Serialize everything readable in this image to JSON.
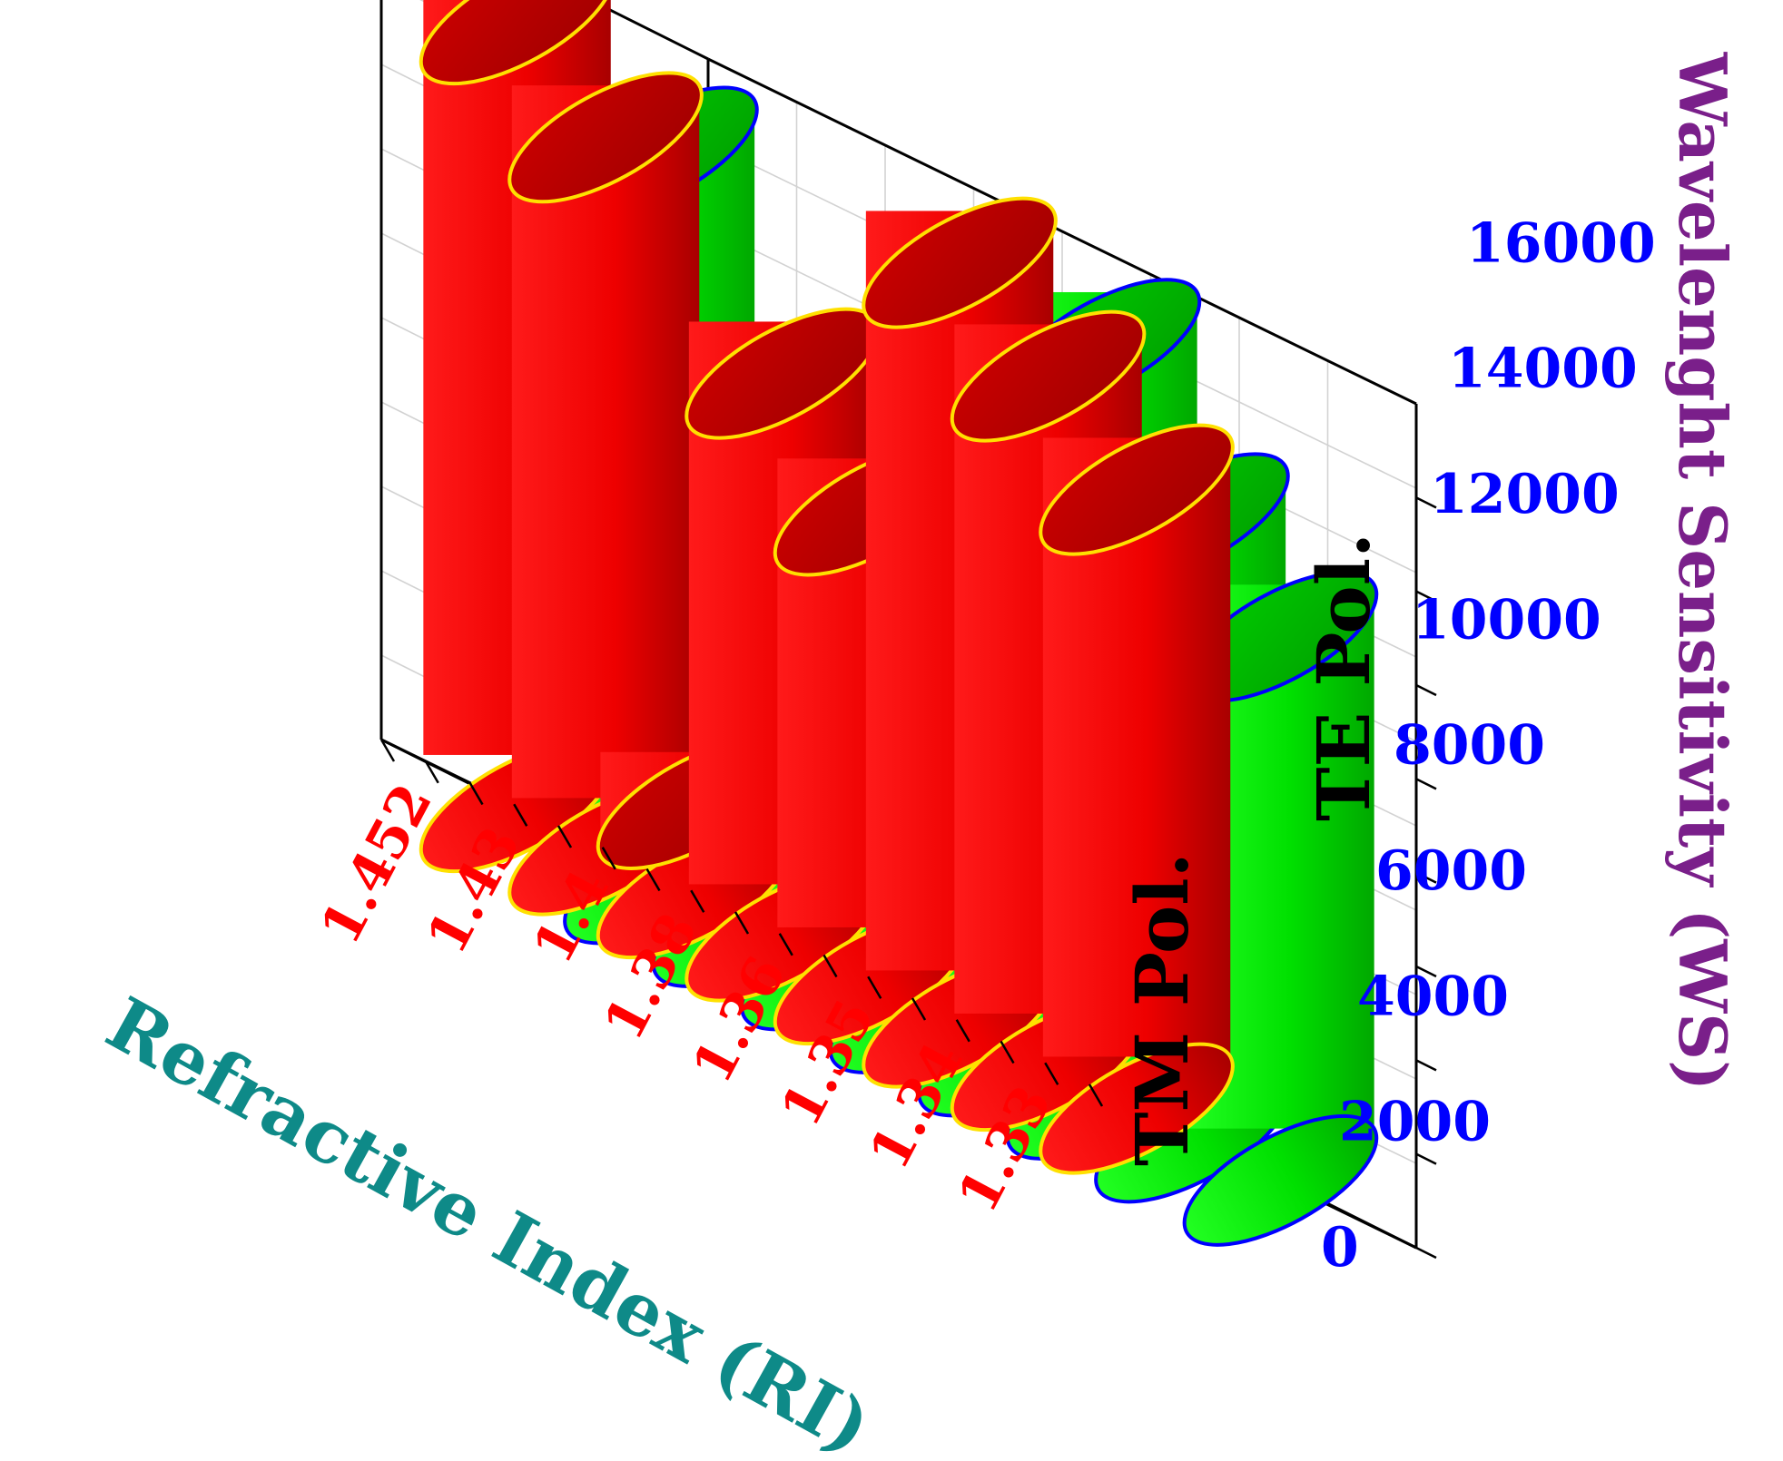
{
  "chart_data": {
    "type": "bar",
    "style": "3d-cylinder",
    "categories": [
      "1.452",
      "1.43",
      "1.4",
      "1.38",
      "1.36",
      "1.35",
      "1.34",
      "1.33"
    ],
    "series": [
      {
        "name": "TM Pol.",
        "color": "#ff0000",
        "rim": "#ffe000",
        "values": [
          16800,
          15200,
          1900,
          12000,
          10000,
          16200,
          14700,
          13200
        ]
      },
      {
        "name": "TE Pol.",
        "color": "#00dd00",
        "rim": "#0000ff",
        "values": [
          15500,
          10000,
          8000,
          7000,
          9600,
          16000,
          13200,
          11600
        ]
      }
    ],
    "zlabel": "Wavelenght Sensitivity (WS)",
    "xlabel": "Refractive Index (RI)",
    "zticks": [
      "0",
      "2000",
      "4000",
      "6000",
      "8000",
      "10000",
      "12000",
      "14000",
      "16000"
    ],
    "zlim": [
      0,
      18000
    ],
    "grid": true
  }
}
